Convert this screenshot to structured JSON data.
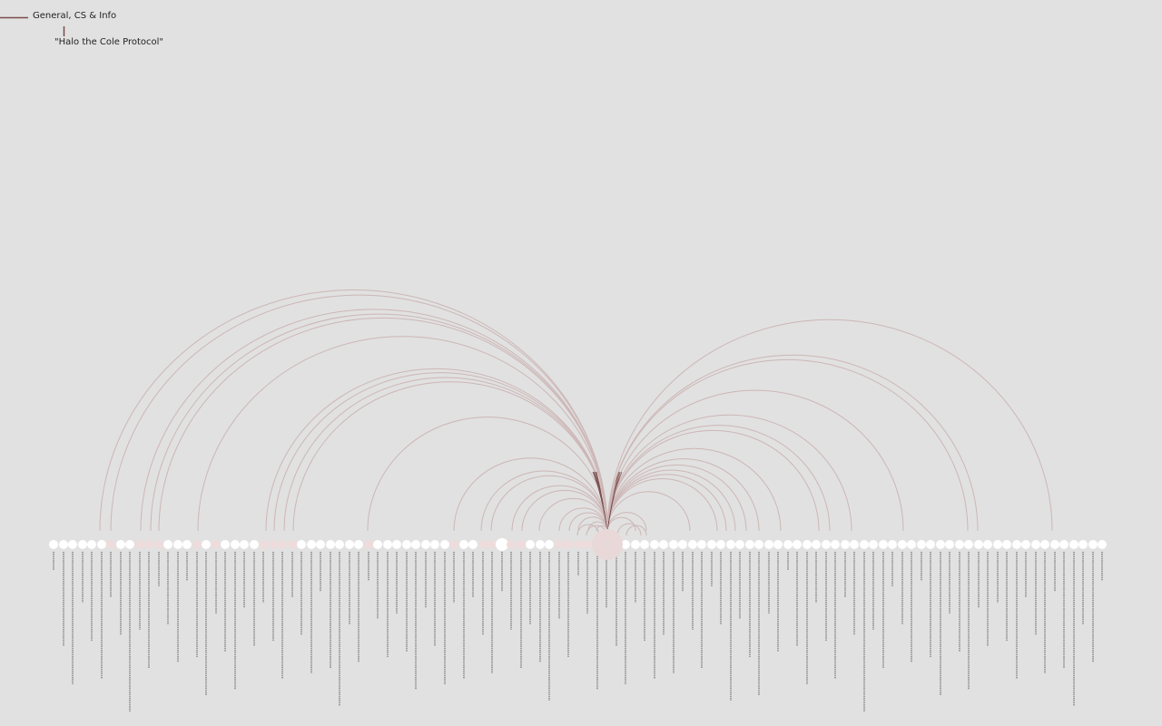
{
  "breadcrumb": {
    "category": "General, CS & Info",
    "selected": "\"Halo the Cole Protocol\""
  },
  "colors": {
    "background": "#e1e1e1",
    "node_default": "#ffffff",
    "node_linked": "#eedcdc",
    "node_selected": "#e9d8d8",
    "arc": "#cdb6b6",
    "arc_strong": "#7a4a4a",
    "breadcrumb_line": "#7a4a4a",
    "label_text": "#1a1a1a"
  },
  "diagram": {
    "type": "arc-diagram",
    "selected_node": "Halo the Cole Protocol"
  }
}
